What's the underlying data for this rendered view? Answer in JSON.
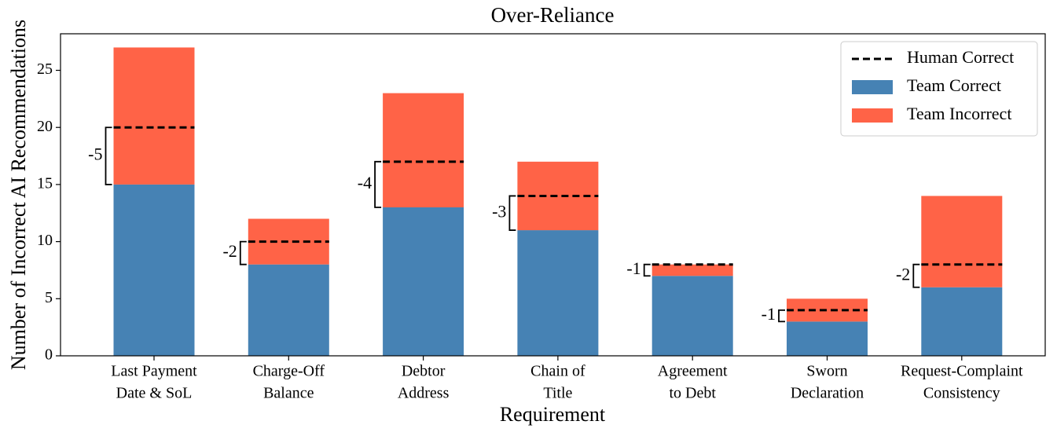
{
  "chart_data": {
    "type": "stacked_bar",
    "title": "Over-Reliance",
    "xlabel": "Requirement",
    "ylabel": "Number of Incorrect AI Recommendations",
    "categories": [
      [
        "Last Payment",
        "Date & SoL"
      ],
      [
        "Charge-Off",
        "Balance"
      ],
      [
        "Debtor",
        "Address"
      ],
      [
        "Chain of",
        "Title"
      ],
      [
        "Agreement",
        "to Debt"
      ],
      [
        "Sworn",
        "Declaration"
      ],
      [
        "Request-Complaint",
        "Consistency"
      ]
    ],
    "series": [
      {
        "name": "Team Correct",
        "color": "#4682b4",
        "values": [
          15,
          8,
          13,
          11,
          7,
          3,
          6
        ]
      },
      {
        "name": "Team Incorrect",
        "color": "#ff6347",
        "values": [
          12,
          4,
          10,
          6,
          1,
          2,
          8
        ]
      }
    ],
    "reference": {
      "name": "Human Correct",
      "color": "#000000",
      "values": [
        20,
        10,
        17,
        14,
        8,
        4,
        8
      ]
    },
    "differences": [
      -5,
      -2,
      -4,
      -3,
      -1,
      -1,
      -2
    ],
    "ylim": [
      0,
      28.2
    ],
    "yticks": [
      0,
      5,
      10,
      15,
      20,
      25
    ],
    "legend": "upper right"
  }
}
